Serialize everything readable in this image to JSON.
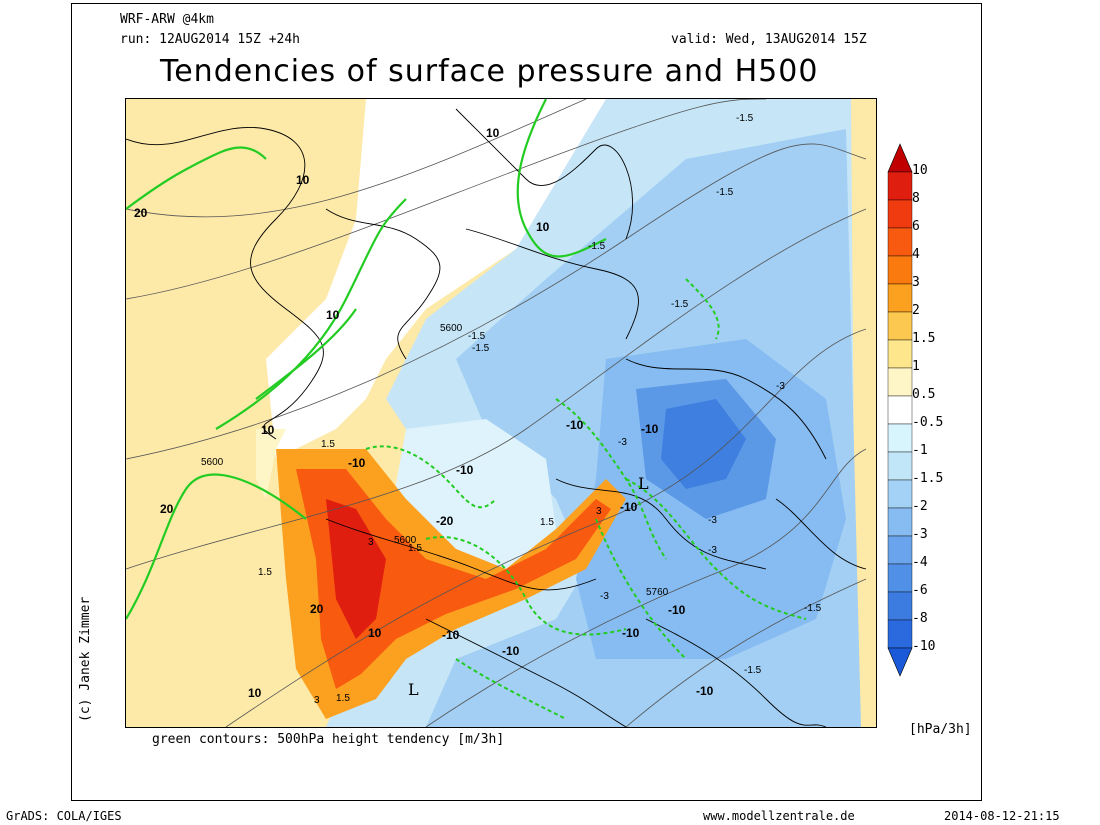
{
  "header": {
    "model": "WRF-ARW @4km",
    "run": "run: 12AUG2014 15Z +24h",
    "valid": "valid: Wed, 13AUG2014 15Z",
    "title": "Tendencies of surface pressure and H500"
  },
  "map": {
    "caption": "green contours: 500hPa height tendency [m/3h]",
    "credit": "(c) Janek Zimmer",
    "low_symbol": "L",
    "height_labels": [
      "5600",
      "5600",
      "5600",
      "5760"
    ],
    "green_labels": [
      "10",
      "10",
      "10",
      "10",
      "10",
      "20",
      "20",
      "20",
      "-10",
      "-10",
      "-10",
      "-20",
      "-10",
      "-10",
      "-10",
      "-10",
      "-10",
      "-10",
      "-10",
      "10",
      "10"
    ],
    "tendency_labels": [
      "-1.5",
      "-1.5",
      "-1.5",
      "-1.5",
      "-1.5",
      "-1.5",
      "1.5",
      "1.5",
      "1.5",
      "1.5",
      "1.5",
      "3",
      "3",
      "3",
      "-3",
      "-3",
      "-3",
      "-3",
      "-3",
      "-1.5",
      "-1.5"
    ]
  },
  "colorbar": {
    "levels": [
      "10",
      "8",
      "6",
      "4",
      "3",
      "2",
      "1.5",
      "1",
      "0.5",
      "-0.5",
      "-1",
      "-1.5",
      "-2",
      "-3",
      "-4",
      "-6",
      "-8",
      "-10"
    ],
    "colors": [
      "#c00000",
      "#e01e10",
      "#f03a10",
      "#f85a10",
      "#fa7a10",
      "#fca020",
      "#fcc850",
      "#fde68c",
      "#fff6c8",
      "#ffffff",
      "#d8f4fc",
      "#c0e6f8",
      "#a4d2f6",
      "#86bcf2",
      "#6aa4ec",
      "#5090e6",
      "#3c7ce0",
      "#2a6ade",
      "#1a5ad8"
    ],
    "unit": "[hPa/3h]"
  },
  "footer": {
    "left": "GrADS: COLA/IGES",
    "center": "www.modellzentrale.de",
    "right": "2014-08-12-21:15"
  }
}
